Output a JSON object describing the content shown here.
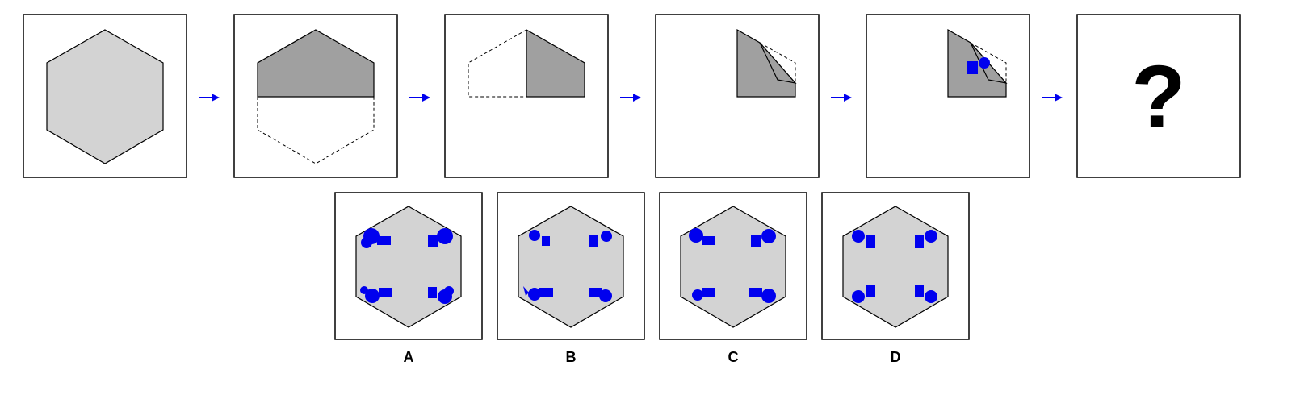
{
  "colors": {
    "hexagon_fill": "#d3d3d3",
    "folded_fill": "#a0a0a0",
    "outline": "#000000",
    "punch": "#0000ee",
    "arrow": "#0000ee",
    "frame": "#000000"
  },
  "sequence": {
    "steps": [
      {
        "id": "step-1",
        "state": "full-hexagon"
      },
      {
        "id": "step-2",
        "state": "fold-top-half-down"
      },
      {
        "id": "step-3",
        "state": "fold-left-half-right"
      },
      {
        "id": "step-4",
        "state": "fold-corner-inward"
      },
      {
        "id": "step-5",
        "state": "punch-square-and-circle"
      }
    ],
    "final_step": {
      "id": "step-6",
      "symbol": "?"
    },
    "arrow_icon": "right-arrow-icon"
  },
  "options": [
    {
      "label": "A"
    },
    {
      "label": "B"
    },
    {
      "label": "C"
    },
    {
      "label": "D"
    }
  ]
}
